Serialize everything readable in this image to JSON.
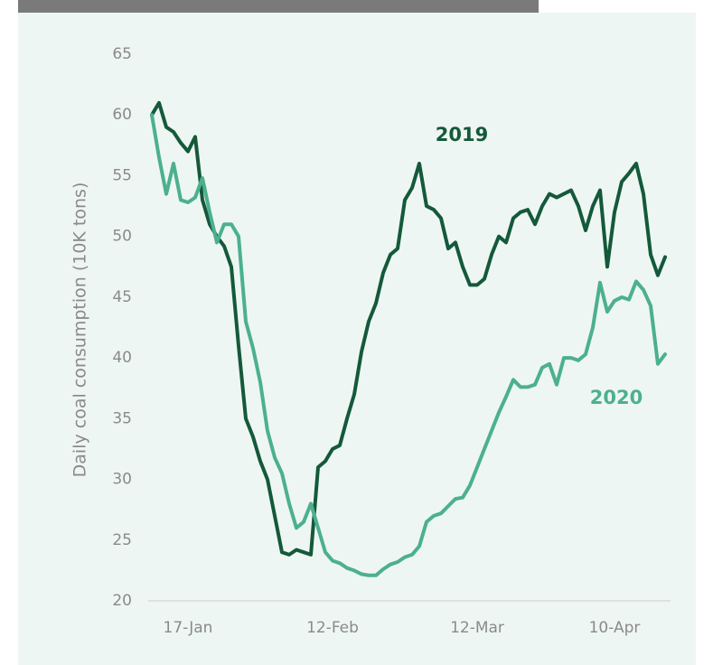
{
  "chart_data": {
    "type": "line",
    "ylabel": "Daily coal consumption (10K tons)",
    "categories": [
      null,
      null,
      null,
      null,
      null,
      "17-Jan",
      null,
      null,
      null,
      null,
      null,
      null,
      null,
      null,
      null,
      null,
      null,
      null,
      null,
      null,
      null,
      null,
      null,
      null,
      null,
      "12-Feb",
      null,
      null,
      null,
      null,
      null,
      null,
      null,
      null,
      null,
      null,
      null,
      null,
      null,
      null,
      null,
      null,
      null,
      null,
      null,
      "12-Mar",
      null,
      null,
      null,
      null,
      null,
      null,
      null,
      null,
      null,
      null,
      null,
      null,
      null,
      null,
      null,
      null,
      null,
      null,
      "10-Apr",
      null,
      null,
      null,
      null,
      null,
      null,
      null
    ],
    "series": [
      {
        "name": "2019",
        "color": "#14593a",
        "values": [
          60,
          61,
          59,
          58.6,
          57.7,
          57,
          58.2,
          53,
          51,
          50,
          49.2,
          47.5,
          41,
          35,
          33.5,
          31.5,
          30,
          27,
          24,
          23.8,
          24.2,
          24,
          23.8,
          31,
          31.5,
          32.5,
          32.8,
          35,
          37,
          40.5,
          43,
          44.5,
          47,
          48.5,
          49,
          53,
          54,
          56,
          52.5,
          52.2,
          51.5,
          49,
          49.5,
          47.5,
          46,
          46,
          46.5,
          48.5,
          50,
          49.5,
          51.5,
          52,
          52.2,
          51,
          52.5,
          53.5,
          53.2,
          53.5,
          53.8,
          52.5,
          50.5,
          52.5,
          53.8,
          47.5,
          52,
          54.5,
          55.2,
          56,
          53.5,
          48.5,
          46.8,
          48.3
        ]
      },
      {
        "name": "2020",
        "color": "#4cb08e",
        "values": [
          60,
          56.5,
          53.5,
          56,
          53,
          52.8,
          53.2,
          54.8,
          52,
          49.5,
          51,
          51,
          50,
          43,
          40.8,
          38,
          34,
          31.8,
          30.5,
          28,
          26,
          26.5,
          28,
          26,
          24,
          23.3,
          23.1,
          22.7,
          22.5,
          22.2,
          22.1,
          22.1,
          22.6,
          23,
          23.2,
          23.6,
          23.8,
          24.5,
          26.5,
          27,
          27.2,
          27.8,
          28.4,
          28.5,
          29.5,
          31,
          32.5,
          34,
          35.5,
          36.8,
          38.2,
          37.6,
          37.6,
          37.8,
          39.2,
          39.5,
          37.8,
          40,
          40,
          39.8,
          40.3,
          42.5,
          46.2,
          43.8,
          44.7,
          45,
          44.8,
          46.3,
          45.6,
          44.3,
          39.5,
          40.3
        ]
      }
    ],
    "ylim": [
      20,
      65
    ],
    "yticks": [
      20,
      25,
      30,
      35,
      40,
      45,
      50,
      55,
      60,
      65
    ],
    "grid": false
  }
}
